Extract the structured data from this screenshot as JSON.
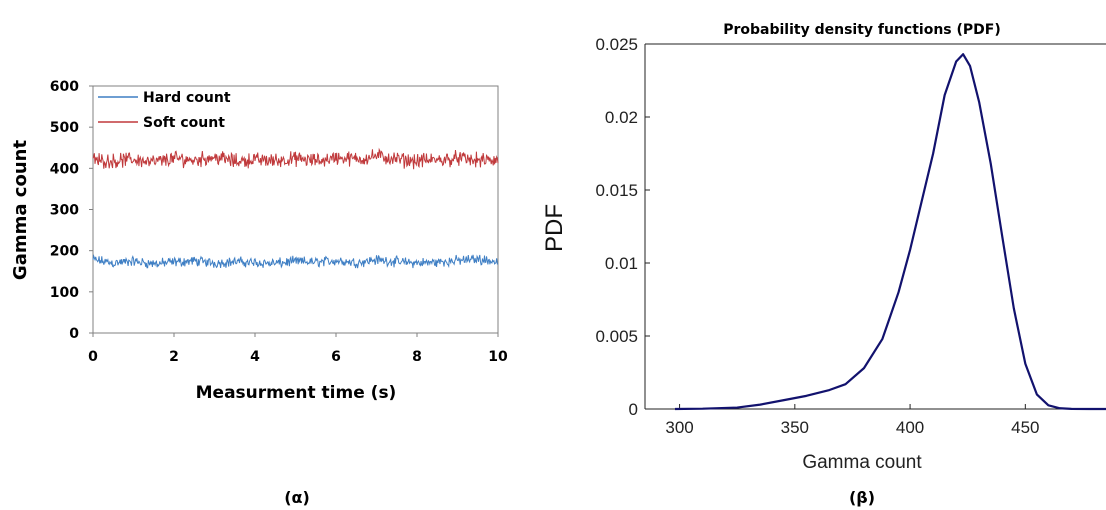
{
  "colors": {
    "hard": "#3f7fc4",
    "soft": "#c0393b",
    "pdf": "#12126e"
  },
  "chart_data": [
    {
      "type": "line",
      "panel_label": "(α)",
      "title": "",
      "xlabel": "Measurment time (s)",
      "ylabel": "Gamma count",
      "xlim": [
        0,
        10
      ],
      "ylim": [
        0,
        600
      ],
      "xticks": [
        0,
        2,
        4,
        6,
        8,
        10
      ],
      "yticks": [
        0,
        100,
        200,
        300,
        400,
        500,
        600
      ],
      "grid": false,
      "legend_position": "top-left",
      "series": [
        {
          "name": "Hard count",
          "x": [
            0,
            0.5,
            1,
            1.5,
            2,
            2.5,
            3,
            3.5,
            4,
            4.5,
            5,
            5.5,
            6,
            6.5,
            7,
            7.5,
            8,
            8.5,
            9,
            9.5,
            10
          ],
          "values": [
            178,
            170,
            174,
            168,
            172,
            175,
            170,
            173,
            171,
            169,
            174,
            172,
            176,
            171,
            178,
            173,
            170,
            172,
            176,
            180,
            172
          ],
          "noise_amplitude": 15
        },
        {
          "name": "Soft count",
          "x": [
            0,
            0.5,
            1,
            1.5,
            2,
            2.5,
            3,
            3.5,
            4,
            4.5,
            5,
            5.5,
            6,
            6.5,
            7,
            7.5,
            8,
            8.5,
            9,
            9.5,
            10
          ],
          "values": [
            420,
            418,
            422,
            415,
            424,
            420,
            428,
            417,
            421,
            419,
            423,
            418,
            426,
            422,
            430,
            421,
            418,
            420,
            425,
            419,
            418
          ],
          "noise_amplitude": 22
        }
      ]
    },
    {
      "type": "line",
      "panel_label": "(β)",
      "title": "Probability density functions (PDF)",
      "xlabel": "Gamma count",
      "ylabel": "PDF",
      "xlim": [
        285,
        485
      ],
      "ylim": [
        0,
        0.025
      ],
      "xticks": [
        300,
        350,
        400,
        450
      ],
      "yticks": [
        0,
        0.005,
        0.01,
        0.015,
        0.02,
        0.025
      ],
      "ytick_labels": [
        "0",
        "0.005",
        "0.01",
        "0.015",
        "0.02",
        "0.025"
      ],
      "grid": false,
      "series": [
        {
          "x": [
            298,
            310,
            325,
            335,
            345,
            355,
            365,
            372,
            380,
            388,
            395,
            400,
            405,
            410,
            415,
            420,
            423,
            426,
            430,
            435,
            440,
            445,
            450,
            455,
            460,
            465,
            470,
            478,
            485
          ],
          "values": [
            0,
            2e-05,
            0.0001,
            0.0003,
            0.0006,
            0.0009,
            0.0013,
            0.0017,
            0.0028,
            0.0048,
            0.008,
            0.0109,
            0.0142,
            0.0175,
            0.0215,
            0.0238,
            0.0243,
            0.0235,
            0.021,
            0.0168,
            0.0118,
            0.0069,
            0.0031,
            0.001,
            0.00025,
            5e-05,
            1e-05,
            0,
            0
          ]
        }
      ]
    }
  ]
}
